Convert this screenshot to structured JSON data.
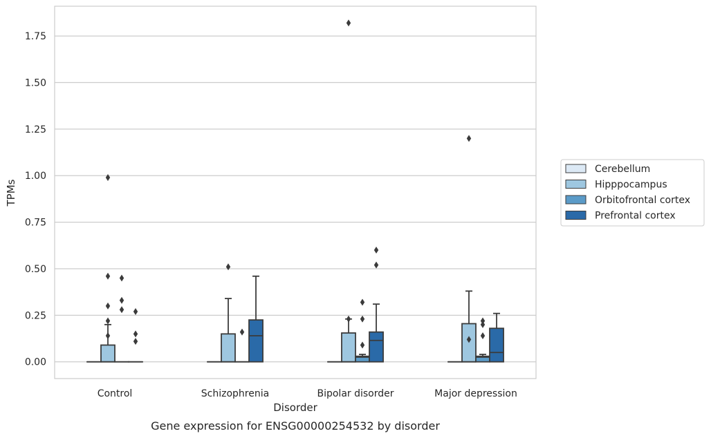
{
  "chart_data": {
    "type": "boxplot",
    "xlabel": "Disorder",
    "ylabel": "TPMs",
    "caption": "Gene expression for ENSG00000254532 by disorder",
    "ylim": [
      -0.09,
      1.91
    ],
    "yticks": [
      "0.00",
      "0.25",
      "0.50",
      "0.75",
      "1.00",
      "1.25",
      "1.50",
      "1.75"
    ],
    "grid": true,
    "legend_position": "right",
    "categories": [
      "Control",
      "Schizophrenia",
      "Bipolar disorder",
      "Major depression"
    ],
    "series": [
      {
        "name": "Cerebellum",
        "color": "#dce9f5",
        "boxes": [
          {
            "q1": 0,
            "median": 0,
            "q3": 0,
            "whislo": 0,
            "whishi": 0,
            "fliers": []
          },
          {
            "q1": 0,
            "median": 0,
            "q3": 0,
            "whislo": 0,
            "whishi": 0,
            "fliers": []
          },
          {
            "q1": 0,
            "median": 0,
            "q3": 0,
            "whislo": 0,
            "whishi": 0,
            "fliers": []
          },
          {
            "q1": 0,
            "median": 0,
            "q3": 0,
            "whislo": 0,
            "whishi": 0,
            "fliers": []
          }
        ]
      },
      {
        "name": "Hipppocampus",
        "color": "#9ec7e0",
        "boxes": [
          {
            "q1": 0,
            "median": 0,
            "q3": 0.09,
            "whislo": 0,
            "whishi": 0.2,
            "fliers": [
              0.3,
              0.22,
              0.14,
              0.46,
              0.99
            ]
          },
          {
            "q1": 0,
            "median": 0,
            "q3": 0.15,
            "whislo": 0,
            "whishi": 0.34,
            "fliers": [
              0.51
            ]
          },
          {
            "q1": 0,
            "median": 0,
            "q3": 0.155,
            "whislo": 0,
            "whishi": 0.23,
            "fliers": [
              0.23,
              1.82
            ]
          },
          {
            "q1": 0,
            "median": 0,
            "q3": 0.205,
            "whislo": 0,
            "whishi": 0.38,
            "fliers": [
              0.12,
              1.2
            ]
          }
        ]
      },
      {
        "name": "Orbitofrontal cortex",
        "color": "#5b9bc8",
        "boxes": [
          {
            "q1": 0,
            "median": 0,
            "q3": 0,
            "whislo": 0,
            "whishi": 0,
            "fliers": [
              0.45,
              0.33,
              0.28
            ]
          },
          {
            "q1": 0,
            "median": 0,
            "q3": 0,
            "whislo": 0,
            "whishi": 0,
            "fliers": [
              0.16
            ]
          },
          {
            "q1": 0,
            "median": 0.025,
            "q3": 0.03,
            "whislo": 0,
            "whishi": 0.04,
            "fliers": [
              0.32,
              0.23,
              0.09
            ]
          },
          {
            "q1": 0,
            "median": 0.025,
            "q3": 0.03,
            "whislo": 0,
            "whishi": 0.04,
            "fliers": [
              0.22,
              0.2,
              0.14
            ]
          }
        ]
      },
      {
        "name": "Prefrontal cortex",
        "color": "#2a6aa8",
        "boxes": [
          {
            "q1": 0,
            "median": 0,
            "q3": 0,
            "whislo": 0,
            "whishi": 0,
            "fliers": [
              0.27,
              0.15,
              0.11
            ]
          },
          {
            "q1": 0,
            "median": 0.14,
            "q3": 0.225,
            "whislo": 0,
            "whishi": 0.46,
            "fliers": []
          },
          {
            "q1": 0,
            "median": 0.115,
            "q3": 0.16,
            "whislo": 0,
            "whishi": 0.31,
            "fliers": [
              0.6,
              0.52
            ]
          },
          {
            "q1": 0,
            "median": 0.05,
            "q3": 0.18,
            "whislo": 0,
            "whishi": 0.26,
            "fliers": []
          }
        ]
      }
    ]
  }
}
